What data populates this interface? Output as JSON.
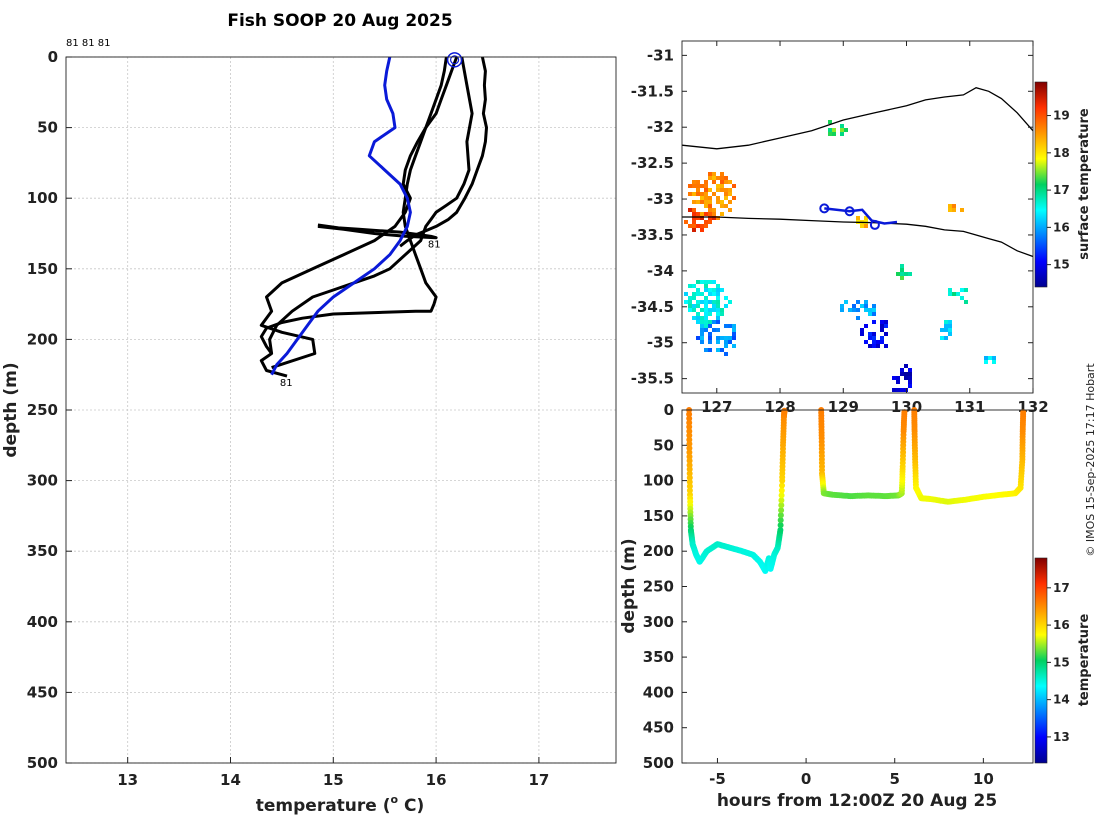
{
  "credit": "© IMOS 15-Sep-2025 17:17 Hobart",
  "colors": {
    "black": "#000000",
    "blue": "#0a1ad8"
  },
  "chart_data": [
    {
      "id": "profile",
      "type": "line",
      "title": "Fish SOOP 20 Aug 2025",
      "xlabel": "temperature (°C)",
      "xlabel_main": "temperature (",
      "xlabel_sup": "o",
      "xlabel_tail": " C)",
      "ylabel": "depth (m)",
      "xlim": [
        12.4,
        17.75
      ],
      "ylim": [
        0,
        500
      ],
      "xticks": [
        "13",
        "14",
        "15",
        "16",
        "17"
      ],
      "yticks": [
        "0",
        "50",
        "100",
        "150",
        "200",
        "250",
        "300",
        "350",
        "400",
        "450",
        "500"
      ],
      "top_note": "81 81 81",
      "profile_labels": [
        {
          "text": "81",
          "t": 15.92,
          "d": 128
        },
        {
          "text": "81",
          "t": 14.48,
          "d": 226
        }
      ],
      "series": [
        {
          "name": "profile 1",
          "color": "#000000",
          "t": [
            16.45,
            16.48,
            16.47,
            16.48,
            16.46,
            16.49,
            16.48,
            16.45,
            16.4,
            16.35,
            16.28,
            16.2,
            16.12,
            16.0,
            15.9,
            15.8,
            15.72,
            15.65
          ],
          "d": [
            0,
            10,
            20,
            30,
            40,
            50,
            60,
            70,
            80,
            90,
            100,
            110,
            115,
            120,
            123,
            126,
            130,
            134
          ]
        },
        {
          "name": "profile 2",
          "color": "#000000",
          "t": [
            16.25,
            16.3,
            16.35,
            16.3,
            16.32,
            16.27,
            16.2,
            16.1,
            16.0,
            15.95,
            15.9,
            15.85,
            15.7,
            15.55,
            15.4,
            15.2,
            15.0,
            14.8,
            14.6,
            14.45,
            14.38,
            14.4,
            14.3,
            14.35,
            14.55
          ],
          "d": [
            0,
            20,
            40,
            60,
            80,
            90,
            100,
            105,
            110,
            115,
            120,
            130,
            140,
            150,
            155,
            160,
            165,
            170,
            180,
            190,
            200,
            210,
            215,
            222,
            226
          ]
        },
        {
          "name": "profile 3",
          "color": "#000000",
          "t": [
            16.2,
            16.15,
            16.1,
            16.05,
            16.0,
            15.9,
            15.82,
            15.75,
            15.7,
            15.68,
            15.75,
            15.7,
            15.6,
            15.4,
            15.1,
            14.8,
            14.5,
            14.35,
            14.4,
            14.3,
            14.5,
            14.8,
            14.82,
            14.4
          ],
          "d": [
            0,
            10,
            20,
            30,
            40,
            50,
            60,
            70,
            80,
            90,
            100,
            110,
            120,
            130,
            140,
            150,
            160,
            170,
            180,
            190,
            195,
            200,
            210,
            220
          ]
        },
        {
          "name": "profile 4",
          "color": "#000000",
          "t": [
            16.1,
            16.08,
            16.05,
            16.0,
            15.95,
            15.9,
            15.85,
            15.8,
            15.75,
            15.72,
            15.7,
            15.68,
            15.7,
            15.75,
            15.8,
            15.85,
            15.9,
            15.95,
            16.0,
            15.98,
            15.95,
            15.8,
            15.4,
            15.0,
            14.7,
            14.5,
            14.35,
            14.3,
            14.35,
            14.4
          ],
          "d": [
            0,
            10,
            20,
            30,
            40,
            50,
            60,
            70,
            80,
            90,
            100,
            110,
            120,
            130,
            140,
            150,
            160,
            165,
            170,
            175,
            180,
            180,
            181,
            182,
            185,
            188,
            192,
            198,
            205,
            210
          ]
        },
        {
          "name": "profile 5",
          "color": "#000000",
          "t": [
            14.85,
            15.05,
            15.25,
            15.45,
            15.65,
            15.85,
            15.95,
            16.0,
            15.7,
            15.4,
            15.1,
            14.85
          ],
          "d": [
            119,
            121,
            122,
            123,
            124,
            126,
            127,
            128,
            127,
            125,
            122,
            120
          ]
        },
        {
          "name": "model / climatology",
          "color": "#0a1ad8",
          "t": [
            15.55,
            15.52,
            15.5,
            15.52,
            15.58,
            15.6,
            15.4,
            15.35,
            15.5,
            15.65,
            15.72,
            15.75,
            15.72,
            15.65,
            15.55,
            15.4,
            15.2,
            15.0,
            14.85,
            14.75,
            14.65,
            14.55,
            14.45,
            14.4
          ],
          "d": [
            0,
            10,
            20,
            30,
            40,
            50,
            60,
            70,
            80,
            90,
            100,
            110,
            120,
            130,
            140,
            150,
            160,
            170,
            180,
            190,
            200,
            210,
            218,
            225
          ]
        }
      ],
      "markers": [
        {
          "name": "start position",
          "t": 16.18,
          "d": 2
        }
      ]
    },
    {
      "id": "map",
      "type": "heatmap",
      "xlim": [
        126.45,
        132.0
      ],
      "ylim": [
        -35.7,
        -30.8
      ],
      "xticks": [
        "127",
        "128",
        "129",
        "130",
        "131",
        "132"
      ],
      "xtick_values": [
        127,
        128,
        129,
        130,
        131,
        132
      ],
      "yticks": [
        "-31",
        "-31.5",
        "-32",
        "-32.5",
        "-33",
        "-33.5",
        "-34",
        "-34.5",
        "-35",
        "-35.5"
      ],
      "ytick_values": [
        -31,
        -31.5,
        -32,
        -32.5,
        -33,
        -33.5,
        -34,
        -34.5,
        -35,
        -35.5
      ],
      "colorbar": {
        "label": "surface temperature",
        "range": [
          14.4,
          19.9
        ],
        "ticks": [
          "15",
          "16",
          "17",
          "18",
          "19"
        ],
        "tick_values": [
          15,
          16,
          17,
          18,
          19
        ]
      },
      "coastline": [
        [
          126.45,
          -32.25
        ],
        [
          127.0,
          -32.3
        ],
        [
          127.5,
          -32.25
        ],
        [
          128.0,
          -32.15
        ],
        [
          128.5,
          -32.05
        ],
        [
          129.0,
          -31.9
        ],
        [
          129.5,
          -31.8
        ],
        [
          130.0,
          -31.7
        ],
        [
          130.3,
          -31.62
        ],
        [
          130.6,
          -31.58
        ],
        [
          130.9,
          -31.55
        ],
        [
          131.1,
          -31.45
        ],
        [
          131.3,
          -31.5
        ],
        [
          131.5,
          -31.6
        ],
        [
          131.75,
          -31.8
        ],
        [
          132.0,
          -32.05
        ]
      ],
      "shelf_line": [
        [
          126.45,
          -33.25
        ],
        [
          127.0,
          -33.25
        ],
        [
          127.5,
          -33.27
        ],
        [
          128.0,
          -33.28
        ],
        [
          128.5,
          -33.3
        ],
        [
          129.0,
          -33.32
        ],
        [
          129.5,
          -33.33
        ],
        [
          130.0,
          -33.35
        ],
        [
          130.3,
          -33.38
        ],
        [
          130.6,
          -33.43
        ],
        [
          130.9,
          -33.45
        ],
        [
          131.1,
          -33.5
        ],
        [
          131.3,
          -33.55
        ],
        [
          131.5,
          -33.6
        ],
        [
          131.75,
          -33.72
        ],
        [
          132.0,
          -33.8
        ]
      ],
      "track": [
        [
          128.7,
          -33.13
        ],
        [
          129.1,
          -33.17
        ],
        [
          129.3,
          -33.15
        ],
        [
          129.45,
          -33.3
        ],
        [
          129.65,
          -33.34
        ],
        [
          129.85,
          -33.32
        ]
      ],
      "track_markers": [
        [
          128.7,
          -33.13
        ],
        [
          129.1,
          -33.17
        ],
        [
          129.5,
          -33.36
        ]
      ],
      "patches": [
        {
          "lon": 126.9,
          "lat": -32.9,
          "rlon": 0.35,
          "rlat": 0.35,
          "temp": 18.6,
          "n": 90
        },
        {
          "lon": 126.7,
          "lat": -33.25,
          "rlon": 0.25,
          "rlat": 0.15,
          "temp": 19.2,
          "n": 30
        },
        {
          "lon": 126.8,
          "lat": -34.4,
          "rlon": 0.35,
          "rlat": 0.35,
          "temp": 16.5,
          "n": 110
        },
        {
          "lon": 127.0,
          "lat": -34.9,
          "rlon": 0.3,
          "rlat": 0.25,
          "temp": 15.8,
          "n": 50
        },
        {
          "lon": 129.2,
          "lat": -34.5,
          "rlon": 0.3,
          "rlat": 0.12,
          "temp": 16.0,
          "n": 25
        },
        {
          "lon": 129.5,
          "lat": -34.85,
          "rlon": 0.25,
          "rlat": 0.2,
          "temp": 15.0,
          "n": 30
        },
        {
          "lon": 129.9,
          "lat": -35.5,
          "rlon": 0.15,
          "rlat": 0.25,
          "temp": 14.8,
          "n": 30
        },
        {
          "lon": 130.6,
          "lat": -34.8,
          "rlon": 0.15,
          "rlat": 0.15,
          "temp": 16.3,
          "n": 15
        },
        {
          "lon": 129.9,
          "lat": -34.0,
          "rlon": 0.15,
          "rlat": 0.08,
          "temp": 17.2,
          "n": 12
        },
        {
          "lon": 128.85,
          "lat": -32.0,
          "rlon": 0.15,
          "rlat": 0.1,
          "temp": 17.3,
          "n": 10
        },
        {
          "lon": 131.3,
          "lat": -35.2,
          "rlon": 0.12,
          "rlat": 0.05,
          "temp": 16.2,
          "n": 6
        },
        {
          "lon": 130.8,
          "lat": -34.3,
          "rlon": 0.2,
          "rlat": 0.1,
          "temp": 16.7,
          "n": 10
        },
        {
          "lon": 129.3,
          "lat": -33.3,
          "rlon": 0.12,
          "rlat": 0.1,
          "temp": 18.2,
          "n": 8
        },
        {
          "lon": 130.75,
          "lat": -33.1,
          "rlon": 0.1,
          "rlat": 0.1,
          "temp": 18.4,
          "n": 8
        }
      ]
    },
    {
      "id": "timeseries",
      "type": "scatter",
      "xlabel": "hours from 12:00Z 20 Aug 25",
      "ylabel": "depth (m)",
      "xlim": [
        -7.0,
        12.8
      ],
      "ylim": [
        0,
        500
      ],
      "xticks": [
        "-5",
        "0",
        "5",
        "10"
      ],
      "xtick_values": [
        -5,
        0,
        5,
        10
      ],
      "yticks": [
        "0",
        "50",
        "100",
        "150",
        "200",
        "250",
        "300",
        "350",
        "400",
        "450",
        "500"
      ],
      "colorbar": {
        "label": "temperature",
        "range": [
          12.3,
          17.8
        ],
        "ticks": [
          "13",
          "14",
          "15",
          "16",
          "17"
        ],
        "tick_values": [
          13,
          14,
          15,
          16,
          17
        ]
      },
      "segments": [
        {
          "h": [
            -6.6,
            -6.58,
            -6.55,
            -6.5,
            -6.4,
            -6.2,
            -6.0,
            -5.6,
            -5.0,
            -4.3,
            -3.6,
            -3.0,
            -2.6,
            -2.3,
            -2.1,
            -2.0,
            -1.8,
            -1.6,
            -1.45,
            -1.35,
            -1.3,
            -1.25,
            -1.22
          ],
          "d": [
            0,
            60,
            120,
            170,
            190,
            205,
            215,
            200,
            190,
            195,
            200,
            205,
            215,
            228,
            210,
            225,
            205,
            195,
            170,
            100,
            50,
            10,
            0
          ],
          "temp": [
            16.6,
            16.4,
            16.0,
            15.0,
            14.6,
            14.5,
            14.45,
            14.55,
            14.6,
            14.55,
            14.5,
            14.5,
            14.45,
            14.4,
            14.5,
            14.4,
            14.5,
            14.6,
            15.0,
            16.0,
            16.3,
            16.5,
            16.6
          ]
        },
        {
          "h": [
            0.85,
            0.88,
            0.9,
            1.0,
            1.5,
            2.5,
            3.5,
            4.5,
            5.2,
            5.4,
            5.45,
            5.5,
            5.55
          ],
          "d": [
            0,
            40,
            90,
            118,
            120,
            122,
            121,
            122,
            121,
            118,
            80,
            30,
            0
          ],
          "temp": [
            16.6,
            16.5,
            16.2,
            15.4,
            15.3,
            15.25,
            15.3,
            15.3,
            15.35,
            15.5,
            16.0,
            16.5,
            16.6
          ]
        },
        {
          "h": [
            6.1,
            6.12,
            6.15,
            6.2,
            6.5,
            7.0,
            8.0,
            9.0,
            10.0,
            11.0,
            11.8,
            12.1,
            12.2,
            12.22,
            12.25
          ],
          "d": [
            0,
            30,
            70,
            110,
            125,
            126,
            130,
            127,
            123,
            120,
            118,
            110,
            70,
            30,
            0
          ],
          "temp": [
            16.6,
            16.5,
            16.2,
            15.8,
            15.7,
            15.7,
            15.65,
            15.7,
            15.72,
            15.75,
            15.8,
            15.9,
            16.2,
            16.5,
            16.6
          ]
        }
      ]
    }
  ]
}
